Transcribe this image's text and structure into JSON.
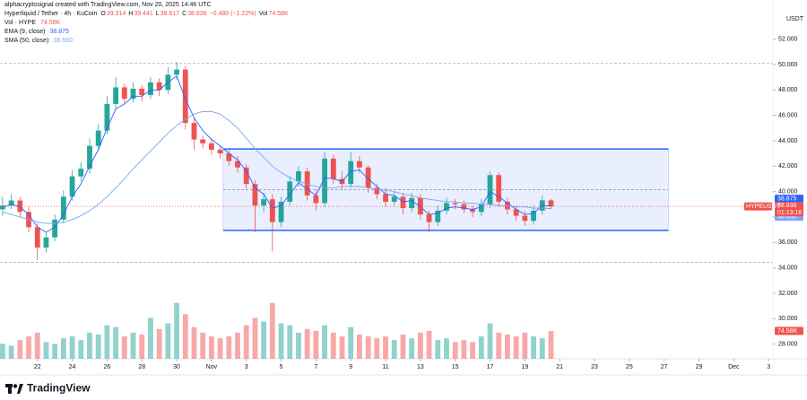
{
  "chart_data": {
    "type": "candlestick",
    "header": {
      "author_line": "alphacryptosignal created with TradingView.com, Nov 20, 2025 14:46 UTC",
      "symbol": "Hyperliquid / Tether · 4h · KuCoin",
      "ohlc_letters": [
        "O",
        "H",
        "L",
        "C"
      ],
      "change": "−0.480 (−1.22%)",
      "vol_letter": "Vol"
    },
    "currency": "USDT",
    "symbol_tag": "HYPEUSDT",
    "countdown": "01:13:16",
    "watermark": "TradingView",
    "up_color": "#26a69a",
    "down_color": "#ef5350",
    "grid": false,
    "xlim": [
      19.85,
      64.25
    ],
    "ylim": [
      26.85,
      54.37
    ],
    "xticks": [
      22,
      24,
      26,
      28,
      30,
      {
        "value": 32,
        "label": "Nov"
      },
      {
        "value": 34,
        "label": "3"
      },
      {
        "value": 36,
        "label": "5"
      },
      {
        "value": 38,
        "label": "7"
      },
      {
        "value": 40,
        "label": "9"
      },
      {
        "value": 42,
        "label": "11"
      },
      {
        "value": 44,
        "label": "13"
      },
      {
        "value": 46,
        "label": "15"
      },
      {
        "value": 48,
        "label": "17"
      },
      {
        "value": 50,
        "label": "19"
      },
      {
        "value": 52,
        "label": "21"
      },
      {
        "value": 54,
        "label": "23"
      },
      {
        "value": 56,
        "label": "25"
      },
      {
        "value": 58,
        "label": "27"
      },
      {
        "value": 60,
        "label": "29"
      },
      {
        "value": 62,
        "label": "Dec"
      },
      {
        "value": 64,
        "label": "3"
      }
    ],
    "yticks": [
      {
        "value": 28,
        "label": "28.000"
      },
      {
        "value": 30,
        "label": "30.000"
      },
      {
        "value": 32,
        "label": "32.000"
      },
      {
        "value": 34,
        "label": "34.000"
      },
      {
        "value": 36,
        "label": "36.000"
      },
      {
        "value": 38,
        "label": "38.000"
      },
      {
        "value": 40,
        "label": "40.000"
      },
      {
        "value": 42,
        "label": "42.000"
      },
      {
        "value": 44,
        "label": "44.000"
      },
      {
        "value": 46,
        "label": "46.000"
      },
      {
        "value": 48,
        "label": "48.000"
      },
      {
        "value": 50,
        "label": "50.000"
      },
      {
        "value": 52,
        "label": "52.000"
      }
    ],
    "x": [
      20,
      20.5,
      21,
      21.5,
      22,
      22.5,
      23,
      23.5,
      24,
      24.5,
      25,
      25.5,
      26,
      26.5,
      27,
      27.5,
      28,
      28.5,
      29,
      29.5,
      30,
      30.5,
      31,
      31.5,
      32,
      32.5,
      33,
      33.5,
      34,
      34.5,
      35,
      35.5,
      36,
      36.5,
      37,
      37.5,
      38,
      38.5,
      39,
      39.5,
      40,
      40.5,
      41,
      41.5,
      42,
      42.5,
      43,
      43.5,
      44,
      44.5,
      45,
      45.5,
      46,
      46.5,
      47,
      47.5,
      48,
      48.5,
      49,
      49.5,
      50,
      50.5,
      51,
      51.5
    ],
    "open": [
      38.6,
      38.9,
      39.3,
      38.4,
      37.2,
      35.6,
      36.4,
      37.8,
      39.6,
      41.2,
      41.8,
      43.6,
      44.8,
      46.9,
      48.2,
      47.3,
      48.1,
      47.6,
      48.6,
      48.0,
      49.2,
      49.6,
      45.4,
      44.1,
      43.8,
      43.3,
      43.0,
      42.4,
      41.9,
      40.6,
      38.9,
      39.4,
      37.6,
      39.2,
      40.8,
      41.6,
      39.7,
      39.1,
      42.6,
      41.0,
      40.6,
      42.4,
      41.9,
      40.3,
      39.8,
      39.2,
      39.6,
      38.7,
      39.5,
      38.2,
      37.6,
      38.5,
      39.1,
      39.0,
      38.6,
      38.4,
      39.0,
      41.3,
      39.2,
      38.6,
      38.1,
      37.7,
      38.5,
      39.314
    ],
    "high": [
      39.6,
      39.8,
      39.6,
      38.8,
      37.5,
      36.8,
      38.2,
      40.1,
      41.7,
      42.3,
      44.2,
      45.3,
      47.5,
      49.0,
      48.5,
      48.6,
      48.4,
      49.0,
      48.9,
      49.8,
      50.2,
      49.9,
      45.8,
      44.4,
      44.2,
      43.6,
      43.3,
      42.8,
      42.2,
      40.9,
      39.9,
      39.8,
      39.6,
      41.2,
      42.0,
      41.9,
      40.2,
      43.1,
      42.9,
      41.6,
      43.1,
      42.8,
      42.1,
      40.6,
      40.3,
      40.0,
      39.9,
      39.9,
      39.8,
      38.5,
      38.9,
      39.5,
      39.4,
      39.3,
      38.9,
      39.4,
      41.6,
      41.5,
      39.5,
      38.9,
      38.5,
      38.9,
      39.7,
      39.441
    ],
    "low": [
      38.1,
      38.6,
      38.0,
      36.8,
      34.6,
      35.2,
      36.1,
      37.5,
      39.3,
      40.8,
      41.4,
      43.2,
      44.5,
      46.5,
      46.9,
      47.0,
      47.1,
      47.3,
      47.5,
      47.7,
      48.8,
      44.9,
      43.3,
      43.4,
      42.9,
      42.6,
      42.0,
      41.5,
      40.2,
      36.8,
      38.4,
      35.3,
      37.2,
      38.9,
      40.4,
      39.3,
      38.5,
      38.8,
      40.6,
      40.2,
      40.3,
      41.5,
      39.9,
      39.4,
      38.8,
      38.9,
      38.2,
      38.4,
      37.8,
      36.8,
      37.3,
      38.2,
      38.6,
      38.3,
      38.0,
      38.1,
      38.7,
      38.8,
      38.2,
      37.7,
      37.3,
      37.4,
      38.2,
      38.617
    ],
    "close": [
      38.9,
      39.3,
      38.4,
      37.2,
      35.6,
      36.4,
      37.8,
      39.6,
      41.2,
      41.8,
      43.6,
      44.8,
      46.9,
      48.2,
      47.3,
      48.1,
      47.6,
      48.6,
      48.0,
      49.2,
      49.6,
      45.4,
      44.1,
      43.8,
      43.3,
      43.0,
      42.4,
      41.9,
      40.6,
      38.9,
      39.4,
      37.6,
      39.2,
      40.8,
      41.6,
      39.7,
      39.1,
      42.6,
      41.0,
      40.6,
      42.4,
      41.9,
      40.3,
      39.8,
      39.2,
      39.6,
      38.7,
      39.5,
      38.2,
      37.6,
      38.5,
      39.1,
      39.0,
      38.6,
      38.4,
      39.0,
      41.3,
      39.2,
      38.6,
      38.1,
      37.7,
      38.5,
      39.316,
      38.836
    ],
    "volume": {
      "name": "Vol · HYPE",
      "ylim": [
        0,
        265
      ],
      "values": [
        40,
        35,
        50,
        60,
        70,
        45,
        40,
        55,
        60,
        50,
        70,
        65,
        90,
        85,
        60,
        70,
        65,
        110,
        80,
        95,
        150,
        120,
        85,
        70,
        60,
        55,
        60,
        70,
        90,
        110,
        100,
        150,
        95,
        90,
        70,
        80,
        75,
        90,
        70,
        60,
        85,
        65,
        60,
        55,
        60,
        50,
        65,
        55,
        70,
        75,
        50,
        55,
        45,
        50,
        45,
        60,
        95,
        70,
        65,
        60,
        70,
        60,
        55,
        74.58
      ],
      "value_label": "74.58K"
    },
    "indicators": [
      {
        "name": "EMA (9, close)",
        "color": "#2962ff",
        "value_label": "38.875",
        "values": [
          38.8,
          39.0,
          38.8,
          38.2,
          37.2,
          36.8,
          37.2,
          38.2,
          39.6,
          40.6,
          42.0,
          43.3,
          45.0,
          46.5,
          46.9,
          47.5,
          47.5,
          48.0,
          48.0,
          48.6,
          49.1,
          47.3,
          45.8,
          44.8,
          44.1,
          43.6,
          43.0,
          42.5,
          41.6,
          40.3,
          39.8,
          38.7,
          38.9,
          39.8,
          40.7,
          40.2,
          39.7,
          41.1,
          41.0,
          40.8,
          41.6,
          41.7,
          41.0,
          40.4,
          39.8,
          39.7,
          39.2,
          39.3,
          38.8,
          38.2,
          38.3,
          38.7,
          38.8,
          38.7,
          38.6,
          38.8,
          40.0,
          39.6,
          39.1,
          38.6,
          38.2,
          38.3,
          38.9,
          38.875
        ]
      },
      {
        "name": "SMA (50, close)",
        "color": "#7aa5f7",
        "value_label": "38.660",
        "values": [
          38.4,
          38.2,
          38.0,
          37.8,
          37.6,
          37.5,
          37.5,
          37.6,
          37.8,
          38.1,
          38.5,
          39.0,
          39.6,
          40.3,
          41.0,
          41.8,
          42.5,
          43.2,
          43.9,
          44.6,
          45.2,
          45.7,
          46.1,
          46.3,
          46.3,
          46.1,
          45.6,
          45.0,
          44.2,
          43.4,
          42.7,
          42.0,
          41.5,
          41.1,
          40.8,
          40.6,
          40.4,
          40.3,
          40.3,
          40.4,
          40.4,
          40.4,
          40.3,
          40.2,
          40.1,
          40.0,
          39.8,
          39.7,
          39.5,
          39.4,
          39.3,
          39.2,
          39.2,
          39.1,
          39.1,
          39.0,
          39.0,
          38.9,
          38.9,
          38.8,
          38.8,
          38.7,
          38.7,
          38.66
        ]
      }
    ],
    "range_box": {
      "x": [
        32.67,
        58.25
      ],
      "y": [
        36.95,
        43.35
      ],
      "color": "#2962ff"
    },
    "hlines": [
      50.08,
      34.42
    ]
  }
}
